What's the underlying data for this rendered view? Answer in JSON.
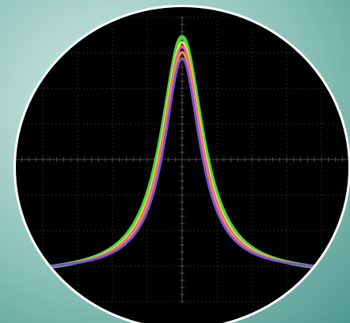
{
  "chart_data": {
    "type": "line",
    "title": "",
    "xlabel": "",
    "ylabel": "",
    "grid": true,
    "legend": "none",
    "xlim": [
      -5,
      5
    ],
    "ylim": [
      -4,
      4
    ],
    "x_divisions": 10,
    "y_divisions": 8,
    "peak_center_x": 0,
    "series": [
      {
        "color": "#4fd23a",
        "baseline": -3.25,
        "peak": 3.45,
        "width": 0.72
      },
      {
        "color": "#f0e23c",
        "baseline": -3.22,
        "peak": 3.3,
        "width": 0.69
      },
      {
        "color": "#e05abf",
        "baseline": -3.2,
        "peak": 3.18,
        "width": 0.67
      },
      {
        "color": "#f2902e",
        "baseline": -3.18,
        "peak": 3.02,
        "width": 0.65
      },
      {
        "color": "#7a52d8",
        "baseline": -3.16,
        "peak": 2.85,
        "width": 0.63
      }
    ]
  },
  "colors": {
    "background_outer": "#4f9a90",
    "background_highlight": "#d7ebe6",
    "display": "#000000",
    "ring": "#ffffff",
    "grid": "#555555"
  }
}
